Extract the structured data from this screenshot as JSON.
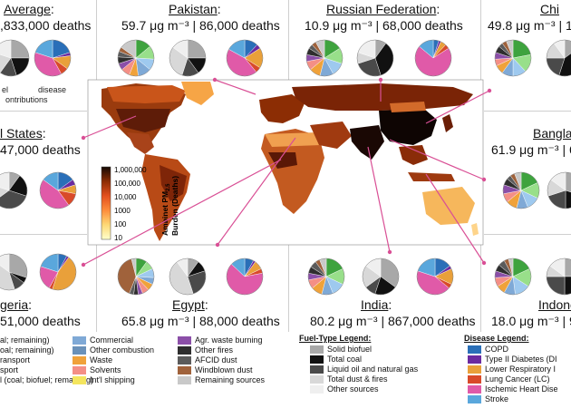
{
  "colors": {
    "commercial": "#7fa9d6",
    "other_combustion": "#6a91b9",
    "waste": "#f0a23a",
    "solvents": "#f48f86",
    "intl_shipping": "#f4e55e",
    "agr_waste": "#8b4fa8",
    "other_fires": "#2e2e2e",
    "afcid_dust": "#5b5b5b",
    "windblown_dust": "#a0623b",
    "remaining_sources": "#c9c9c9",
    "solid_biofuel": "#a8a8a8",
    "total_coal": "#111111",
    "liquid_oil_gas": "#4a4a4a",
    "total_dust_fires": "#d8d8d8",
    "other_sources": "#efefef",
    "copd": "#2a6fb8",
    "type2_diabetes": "#6b2aa0",
    "lri": "#e9a03a",
    "lung_cancer": "#d94a2a",
    "ihd": "#e05aa8",
    "stroke": "#5aa7dc",
    "link_line": "#d94f95"
  },
  "panels": {
    "global": {
      "title": "Average",
      "subtitle": ",833,000 deaths",
      "fuel_label": "el",
      "disease_label": "disease",
      "contrib_label": "ontributions"
    },
    "pakistan": {
      "title": "Pakistan",
      "subtitle": "59.7 μg m⁻³ | 86,000 deaths"
    },
    "russia": {
      "title": "Russian Federation",
      "subtitle": "10.9 μg m⁻³ | 68,000 deaths"
    },
    "china": {
      "title": "Chi",
      "subtitle": "49.8 μg m⁻³ | 1,3"
    },
    "us": {
      "title": "l States",
      "subtitle": "47,000 deaths"
    },
    "bangladesh": {
      "title": "Bangla",
      "subtitle": "61.9 μg m⁻³ | 6"
    },
    "nigeria": {
      "title": "geria",
      "subtitle": "51,000 deaths"
    },
    "egypt": {
      "title": "Egypt",
      "subtitle": "65.8 μg m⁻³ | 88,000 deaths"
    },
    "india": {
      "title": "India",
      "subtitle": "80.2 μg m⁻³ | 867,000 deaths"
    },
    "indonesia": {
      "title": "Indone",
      "subtitle": "18.0 μg m⁻³ | 9"
    }
  },
  "map": {
    "colorbar_ticks": [
      "1,000,000",
      "100,000",
      "10,000",
      "1000",
      "100",
      "10"
    ],
    "colorbar_label_line1": "Ambinet PM",
    "colorbar_label_sub": "2.5",
    "colorbar_label_line2": "Burden (Deaths)"
  },
  "legends": {
    "sector_col1": [
      "al; remaining)",
      "oal; remaining)",
      "ransport",
      "sport",
      "l (coal; biofuel; remaining)"
    ],
    "sector_col2": [
      "Commercial",
      "Other combustion",
      "Waste",
      "Solvents",
      "Int'l shipping"
    ],
    "sector_col3": [
      "Agr. waste burning",
      "Other fires",
      "AFCID dust",
      "Windblown dust",
      "Remaining sources"
    ],
    "fuel_title": "Fuel-Type Legend:",
    "fuel": [
      "Solid biofuel",
      "Total coal",
      "Liquid oil and natural gas",
      "Total dust & fires",
      "Other sources"
    ],
    "disease_title": "Disease Legend:",
    "disease": [
      "COPD",
      "Type II Diabetes (DI",
      "Lower Respiratory I",
      "Lung Cancer (LC)",
      "Ischemic Heart Dise",
      "Stroke"
    ]
  },
  "chart_data": {
    "type": "pie",
    "note_units": "percent of deaths (approximate)",
    "countries": [
      {
        "country": "Global Average",
        "sector": [
          20,
          12,
          10,
          8,
          6,
          6,
          5,
          5,
          5,
          5,
          18
        ],
        "fuel": [
          25,
          20,
          15,
          20,
          20
        ],
        "disease": [
          20,
          3,
          12,
          7,
          38,
          20
        ]
      },
      {
        "country": "Pakistan",
        "sector": [
          14,
          12,
          10,
          12,
          8,
          8,
          6,
          6,
          5,
          4,
          15
        ],
        "fuel": [
          25,
          15,
          15,
          30,
          15
        ],
        "disease": [
          12,
          4,
          18,
          5,
          44,
          17
        ]
      },
      {
        "country": "Russian Federation",
        "sector": [
          16,
          14,
          12,
          12,
          10,
          8,
          6,
          6,
          4,
          4,
          8
        ],
        "fuel": [
          10,
          35,
          25,
          10,
          20
        ],
        "disease": [
          5,
          2,
          5,
          4,
          70,
          14
        ]
      },
      {
        "country": "China",
        "sector": [
          22,
          16,
          12,
          10,
          8,
          6,
          6,
          6,
          4,
          4,
          6
        ],
        "fuel": [
          15,
          40,
          20,
          15,
          10
        ],
        "disease": [
          14,
          3,
          4,
          12,
          33,
          34
        ]
      },
      {
        "country": "United States",
        "sector": [
          18,
          16,
          12,
          10,
          10,
          8,
          8,
          6,
          4,
          4,
          4
        ],
        "fuel": [
          10,
          20,
          35,
          15,
          20
        ],
        "disease": [
          15,
          5,
          8,
          12,
          45,
          15
        ]
      },
      {
        "country": "Bangladesh",
        "sector": [
          18,
          14,
          12,
          10,
          10,
          8,
          8,
          6,
          4,
          4,
          6
        ],
        "fuel": [
          30,
          20,
          20,
          15,
          15
        ],
        "disease": [
          10,
          3,
          15,
          6,
          40,
          26
        ]
      },
      {
        "country": "Nigeria",
        "sector": [
          14,
          12,
          10,
          8,
          8,
          6,
          6,
          6,
          4,
          4,
          22
        ],
        "fuel": [
          30,
          5,
          10,
          40,
          15
        ],
        "disease": [
          8,
          2,
          45,
          3,
          22,
          20
        ]
      },
      {
        "country": "Egypt",
        "sector": [
          10,
          8,
          8,
          6,
          6,
          6,
          4,
          4,
          4,
          40,
          4
        ],
        "fuel": [
          10,
          10,
          25,
          45,
          10
        ],
        "disease": [
          8,
          2,
          8,
          4,
          65,
          13
        ]
      },
      {
        "country": "India",
        "sector": [
          18,
          14,
          12,
          10,
          10,
          8,
          6,
          6,
          6,
          4,
          6
        ],
        "fuel": [
          35,
          20,
          10,
          20,
          15
        ],
        "disease": [
          15,
          3,
          14,
          4,
          44,
          20
        ]
      },
      {
        "country": "Indonesia",
        "sector": [
          18,
          16,
          14,
          10,
          8,
          8,
          6,
          6,
          6,
          4,
          4
        ],
        "fuel": [
          25,
          25,
          25,
          10,
          15
        ],
        "disease": [
          12,
          3,
          14,
          7,
          30,
          34
        ]
      }
    ]
  }
}
